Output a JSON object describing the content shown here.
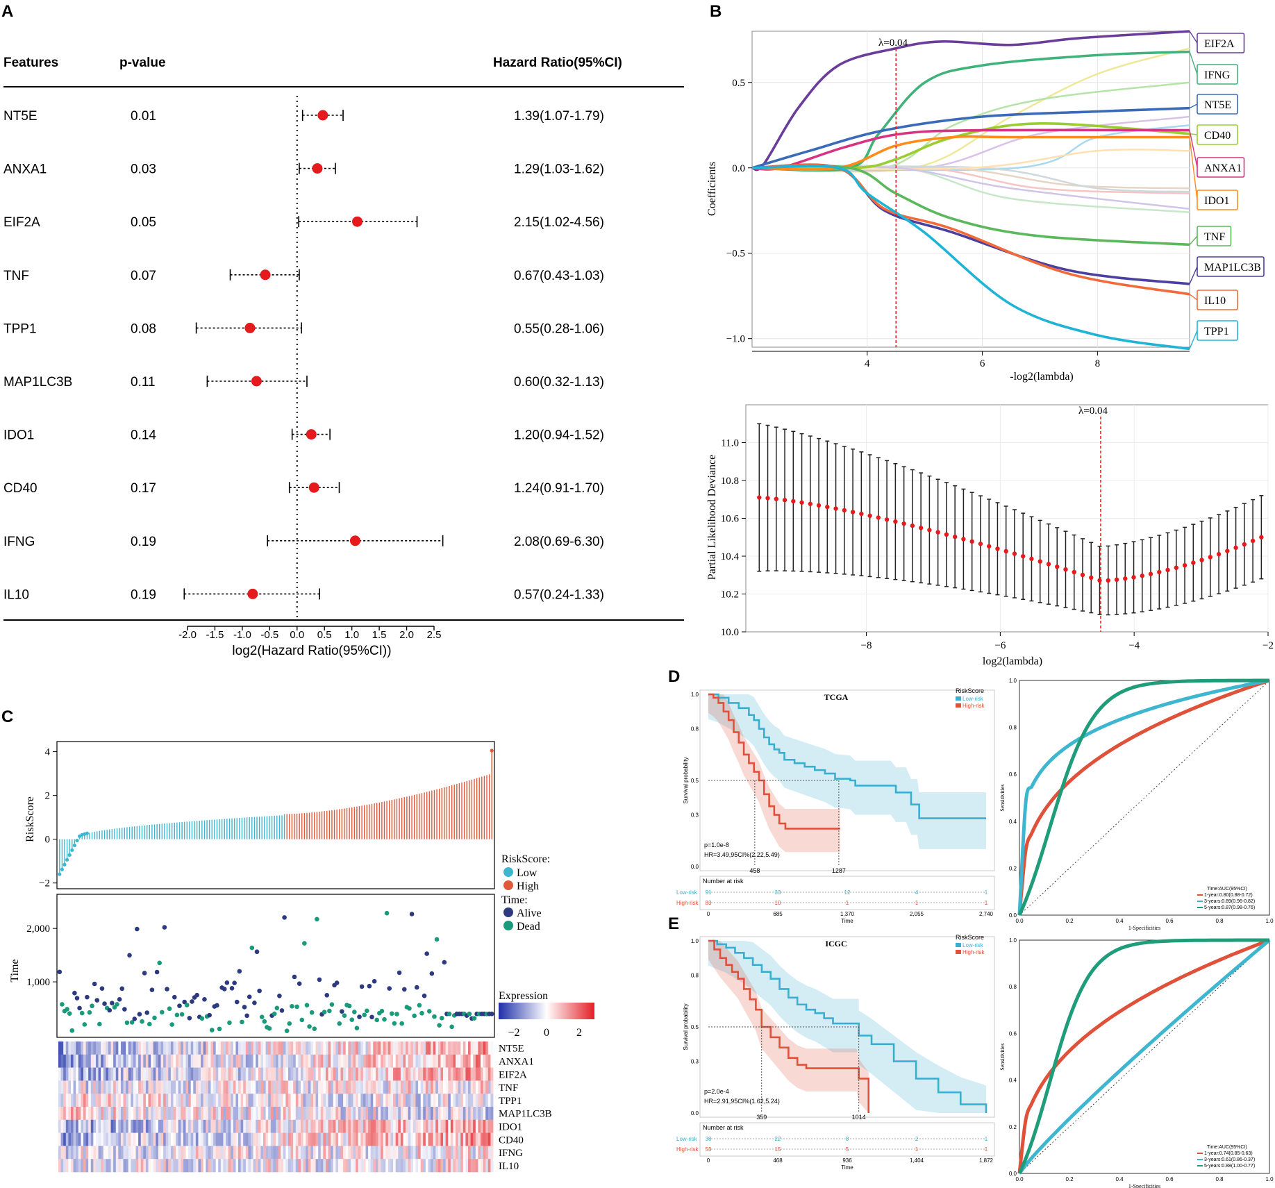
{
  "panel_letters": {
    "a": "A",
    "b": "B",
    "c": "C",
    "d": "D",
    "e": "E"
  },
  "colors": {
    "red": "#e41a1c",
    "low": "#3fb6cf",
    "high": "#e05a3a",
    "alive": "#2d3a80",
    "dead": "#199b7b",
    "km_low": "#3aaed0",
    "km_high": "#e0513a"
  },
  "chart_data": [
    {
      "id": "forest",
      "type": "forest",
      "headers": {
        "features": "Features",
        "pvalue": "p-value",
        "hr": "Hazard Ratio(95%CI)"
      },
      "xlabel": "log2(Hazard Ratio(95%CI))",
      "xlim": [
        -2.0,
        2.5
      ],
      "ticks": [
        "-2.0",
        "-1.5",
        "-1.0",
        "-0.5",
        "0.0",
        "0.5",
        "1.0",
        "1.5",
        "2.0",
        "2.5"
      ],
      "rows": [
        {
          "feature": "NT5E",
          "p": "0.01",
          "hr_text": "1.39(1.07-1.79)",
          "est": 0.47,
          "lo": 0.1,
          "hi": 0.84
        },
        {
          "feature": "ANXA1",
          "p": "0.03",
          "hr_text": "1.29(1.03-1.62)",
          "est": 0.37,
          "lo": 0.04,
          "hi": 0.7
        },
        {
          "feature": "EIF2A",
          "p": "0.05",
          "hr_text": "2.15(1.02-4.56)",
          "est": 1.1,
          "lo": 0.03,
          "hi": 2.19
        },
        {
          "feature": "TNF",
          "p": "0.07",
          "hr_text": "0.67(0.43-1.03)",
          "est": -0.58,
          "lo": -1.22,
          "hi": 0.04
        },
        {
          "feature": "TPP1",
          "p": "0.08",
          "hr_text": "0.55(0.28-1.06)",
          "est": -0.86,
          "lo": -1.84,
          "hi": 0.08
        },
        {
          "feature": "MAP1LC3B",
          "p": "0.11",
          "hr_text": "0.60(0.32-1.13)",
          "est": -0.74,
          "lo": -1.64,
          "hi": 0.18
        },
        {
          "feature": "IDO1",
          "p": "0.14",
          "hr_text": "1.20(0.94-1.52)",
          "est": 0.26,
          "lo": -0.09,
          "hi": 0.6
        },
        {
          "feature": "CD40",
          "p": "0.17",
          "hr_text": "1.24(0.91-1.70)",
          "est": 0.31,
          "lo": -0.14,
          "hi": 0.77
        },
        {
          "feature": "IFNG",
          "p": "0.19",
          "hr_text": "2.08(0.69-6.30)",
          "est": 1.06,
          "lo": -0.54,
          "hi": 2.66
        },
        {
          "feature": "IL10",
          "p": "0.19",
          "hr_text": "0.57(0.24-1.33)",
          "est": -0.81,
          "lo": -2.06,
          "hi": 0.41
        }
      ]
    },
    {
      "id": "lasso_coef",
      "type": "line",
      "xlabel": "-log2(lambda)",
      "ylabel": "Coefficients",
      "xlim": [
        2.0,
        9.6
      ],
      "ylim": [
        -1.05,
        0.8
      ],
      "xticks": [
        "4",
        "6",
        "8"
      ],
      "yticks": [
        "0.5",
        "0.0",
        "−0.5",
        "−1.0"
      ],
      "lambda_label": "λ=0.04",
      "lambda_x": 4.5,
      "series": [
        {
          "name": "EIF2A",
          "color": "#6a3d9a",
          "pts": [
            [
              2.0,
              0
            ],
            [
              2.2,
              0.02
            ],
            [
              2.8,
              0.35
            ],
            [
              3.5,
              0.6
            ],
            [
              4.5,
              0.7
            ],
            [
              5.3,
              0.74
            ],
            [
              6.5,
              0.72
            ],
            [
              7.7,
              0.76
            ],
            [
              9.6,
              0.8
            ]
          ]
        },
        {
          "name": "IFNG",
          "color": "#41b37a",
          "pts": [
            [
              3.7,
              0
            ],
            [
              4.2,
              0.2
            ],
            [
              5.0,
              0.5
            ],
            [
              6.0,
              0.6
            ],
            [
              8.0,
              0.66
            ],
            [
              9.6,
              0.68
            ]
          ]
        },
        {
          "name": "NT5E",
          "color": "#3a6ab8",
          "pts": [
            [
              2.0,
              0
            ],
            [
              3.0,
              0.1
            ],
            [
              4.3,
              0.22
            ],
            [
              6.0,
              0.3
            ],
            [
              8.0,
              0.33
            ],
            [
              9.6,
              0.35
            ]
          ]
        },
        {
          "name": "CD40",
          "color": "#9acd32",
          "pts": [
            [
              3.8,
              0
            ],
            [
              4.5,
              0.05
            ],
            [
              5.5,
              0.18
            ],
            [
              7.0,
              0.26
            ],
            [
              9.6,
              0.2
            ]
          ]
        },
        {
          "name": "ANXA1",
          "color": "#d63384",
          "pts": [
            [
              2.5,
              0
            ],
            [
              3.6,
              0.12
            ],
            [
              4.6,
              0.2
            ],
            [
              6.0,
              0.22
            ],
            [
              9.6,
              0.22
            ]
          ]
        },
        {
          "name": "IDO1",
          "color": "#ff8c1a",
          "pts": [
            [
              3.5,
              0
            ],
            [
              4.5,
              0.13
            ],
            [
              5.5,
              0.18
            ],
            [
              6.5,
              0.18
            ],
            [
              9.6,
              0.18
            ]
          ]
        },
        {
          "name": "TNF",
          "color": "#5cb85c",
          "pts": [
            [
              3.7,
              0
            ],
            [
              4.5,
              -0.15
            ],
            [
              5.5,
              -0.3
            ],
            [
              7.0,
              -0.4
            ],
            [
              9.6,
              -0.45
            ]
          ]
        },
        {
          "name": "MAP1LC3B",
          "color": "#4b3fa0",
          "pts": [
            [
              3.5,
              0
            ],
            [
              4.3,
              -0.25
            ],
            [
              5.5,
              -0.38
            ],
            [
              7.5,
              -0.6
            ],
            [
              9.6,
              -0.68
            ]
          ]
        },
        {
          "name": "IL10",
          "color": "#f06a3a",
          "pts": [
            [
              3.5,
              0
            ],
            [
              4.3,
              -0.24
            ],
            [
              5.5,
              -0.36
            ],
            [
              7.5,
              -0.62
            ],
            [
              9.6,
              -0.74
            ]
          ]
        },
        {
          "name": "TPP1",
          "color": "#1fb3d6",
          "pts": [
            [
              3.5,
              0
            ],
            [
              4.0,
              -0.15
            ],
            [
              5.0,
              -0.38
            ],
            [
              6.5,
              -0.8
            ],
            [
              8.0,
              -0.98
            ],
            [
              9.6,
              -1.06
            ]
          ]
        }
      ],
      "faint_series": [
        {
          "color": "#efe89a",
          "pts": [
            [
              4.8,
              0
            ],
            [
              6.5,
              0.3
            ],
            [
              8.0,
              0.55
            ],
            [
              9.6,
              0.7
            ]
          ]
        },
        {
          "color": "#b6e3a8",
          "pts": [
            [
              4.3,
              0
            ],
            [
              5.5,
              0.25
            ],
            [
              7.0,
              0.4
            ],
            [
              9.6,
              0.5
            ]
          ]
        },
        {
          "color": "#d9c2e8",
          "pts": [
            [
              5.0,
              0
            ],
            [
              7.0,
              0.2
            ],
            [
              9.6,
              0.3
            ]
          ]
        },
        {
          "color": "#a9d9ef",
          "pts": [
            [
              6.6,
              0
            ],
            [
              8.0,
              0.18
            ],
            [
              9.6,
              0.25
            ]
          ]
        },
        {
          "color": "#f7c4c4",
          "pts": [
            [
              5.0,
              0
            ],
            [
              7.0,
              -0.12
            ],
            [
              9.6,
              -0.15
            ]
          ]
        },
        {
          "color": "#c8e6c9",
          "pts": [
            [
              4.6,
              0
            ],
            [
              6.5,
              -0.18
            ],
            [
              9.6,
              -0.26
            ]
          ]
        },
        {
          "color": "#e6d5c3",
          "pts": [
            [
              5.4,
              0
            ],
            [
              7.5,
              -0.1
            ],
            [
              9.6,
              -0.12
            ]
          ]
        },
        {
          "color": "#cfd8dc",
          "pts": [
            [
              6.0,
              0
            ],
            [
              8.0,
              -0.12
            ],
            [
              9.6,
              -0.14
            ]
          ]
        },
        {
          "color": "#ffe0b2",
          "pts": [
            [
              5.8,
              0
            ],
            [
              8.0,
              0.1
            ],
            [
              9.6,
              0.1
            ]
          ]
        },
        {
          "color": "#d1c4e9",
          "pts": [
            [
              4.5,
              0
            ],
            [
              6.5,
              -0.12
            ],
            [
              9.6,
              -0.24
            ]
          ]
        }
      ]
    },
    {
      "id": "lasso_cv",
      "type": "errorbar",
      "xlabel": "log2(lambda)",
      "ylabel": "Partial Likelihood Deviance",
      "xlim": [
        -9.8,
        -2.0
      ],
      "ylim": [
        10.0,
        11.2
      ],
      "xticks": [
        "−8",
        "−6",
        "−4",
        "−2"
      ],
      "yticks": [
        "11.0",
        "10.8",
        "10.6",
        "10.4",
        "10.2",
        "10.0"
      ],
      "lambda_label": "λ=0.04",
      "lambda_x": -4.5,
      "n_points": 60,
      "x_start": -9.6,
      "x_end": -2.1,
      "min_x": -4.5,
      "min_y": 10.27,
      "start_y": 10.71,
      "end_y": 10.5,
      "err_start": 0.39,
      "err_min": 0.18,
      "err_end": 0.22
    },
    {
      "id": "risk",
      "type": "risk_plot",
      "risk_ylabel": "RiskScore",
      "risk_yticks": [
        "4",
        "2",
        "0",
        "−2"
      ],
      "time_ylabel": "Time",
      "time_yticks": [
        "2,000",
        "1,000"
      ],
      "legend_risk_title": "RiskScore:",
      "legend_low": "Low",
      "legend_high": "High",
      "legend_time_title": "Time:",
      "legend_alive": "Alive",
      "legend_dead": "Dead",
      "expr_title": "Expression",
      "expr_ticks": [
        "−2",
        "0",
        "2"
      ],
      "genes": [
        "NT5E",
        "ANXA1",
        "EIF2A",
        "TNF",
        "TPP1",
        "MAP1LC3B",
        "IDO1",
        "CD40",
        "IFNG",
        "IL10"
      ],
      "n_samples": 174,
      "n_low": 91
    },
    {
      "id": "km_tcga",
      "type": "km",
      "title": "TCGA",
      "legend_title": "RiskScore",
      "legend_low": "Low-risk",
      "legend_high": "High-risk",
      "ylabel": "Survival probability",
      "xlabel": "Time",
      "yticks": [
        "1.0",
        "0.8",
        "0.5",
        "0.3",
        "0.0"
      ],
      "xticks": [
        "0",
        "685",
        "1,370",
        "2,055",
        "2,740"
      ],
      "pvalue": "p=1.0e-8",
      "hr": "HR=3.49,95CI%(2.22,5.49)",
      "median_low": "1287",
      "median_high": "458",
      "risk_title": "Number at risk",
      "risk_low_label": "Low-risk",
      "risk_high_label": "High-risk",
      "risk_low": [
        "91",
        "33",
        "12",
        "4",
        "1"
      ],
      "risk_high": [
        "83",
        "10",
        "1",
        "1",
        "1"
      ],
      "xmax": 2740,
      "low_steps": [
        [
          0,
          1.0
        ],
        [
          100,
          0.98
        ],
        [
          200,
          0.95
        ],
        [
          300,
          0.92
        ],
        [
          400,
          0.88
        ],
        [
          450,
          0.85
        ],
        [
          500,
          0.8
        ],
        [
          550,
          0.75
        ],
        [
          600,
          0.71
        ],
        [
          650,
          0.68
        ],
        [
          700,
          0.66
        ],
        [
          750,
          0.62
        ],
        [
          850,
          0.6
        ],
        [
          950,
          0.58
        ],
        [
          1050,
          0.56
        ],
        [
          1150,
          0.54
        ],
        [
          1250,
          0.51
        ],
        [
          1400,
          0.5
        ],
        [
          1450,
          0.47
        ],
        [
          1800,
          0.47
        ],
        [
          1850,
          0.43
        ],
        [
          1950,
          0.43
        ],
        [
          2000,
          0.36
        ],
        [
          2060,
          0.36
        ],
        [
          2080,
          0.28
        ],
        [
          2740,
          0.28
        ]
      ],
      "high_steps": [
        [
          0,
          1.0
        ],
        [
          50,
          0.98
        ],
        [
          100,
          0.95
        ],
        [
          150,
          0.9
        ],
        [
          200,
          0.85
        ],
        [
          250,
          0.78
        ],
        [
          300,
          0.72
        ],
        [
          350,
          0.65
        ],
        [
          400,
          0.6
        ],
        [
          450,
          0.55
        ],
        [
          500,
          0.5
        ],
        [
          550,
          0.42
        ],
        [
          600,
          0.35
        ],
        [
          650,
          0.3
        ],
        [
          700,
          0.25
        ],
        [
          760,
          0.22
        ],
        [
          1300,
          0.22
        ]
      ]
    },
    {
      "id": "roc_tcga",
      "type": "roc",
      "xlabel": "1-Specificities",
      "ylabel": "Sensitivities",
      "ticks": [
        "0.0",
        "0.2",
        "0.4",
        "0.6",
        "0.8",
        "1.0"
      ],
      "legend_title": "Time:AUC(95%CI)",
      "legend": [
        "1-year:0.80(0.88-0.72)",
        "3-years:0.89(0.96-0.82)",
        "5-years:0.87(0.98-0.76)"
      ],
      "curves": [
        {
          "color": "#e0513a",
          "k": 0.35
        },
        {
          "color": "#3fb6cf",
          "k": 0.2
        },
        {
          "color": "#1f9c7a",
          "k": 0.5,
          "sig": true
        }
      ]
    },
    {
      "id": "km_icgc",
      "type": "km",
      "title": "ICGC",
      "legend_title": "RiskScore",
      "legend_low": "Low-risk",
      "legend_high": "High-risk",
      "ylabel": "Survival probability",
      "xlabel": "Time",
      "yticks": [
        "1.0",
        "0.8",
        "0.5",
        "0.3",
        "0.0"
      ],
      "xticks": [
        "0",
        "468",
        "936",
        "1,404",
        "1,872"
      ],
      "pvalue": "p=2.0e-4",
      "hr": "HR=2.91,95CI%(1.62,5.24)",
      "median_low": "1014",
      "median_high": "359",
      "risk_title": "Number at risk",
      "risk_low_label": "Low-risk",
      "risk_high_label": "High-risk",
      "risk_low": [
        "38",
        "22",
        "8",
        "2",
        "1"
      ],
      "risk_high": [
        "53",
        "15",
        "5",
        "1",
        "1"
      ],
      "xmax": 1872,
      "low_steps": [
        [
          0,
          1.0
        ],
        [
          60,
          0.98
        ],
        [
          120,
          0.96
        ],
        [
          180,
          0.93
        ],
        [
          240,
          0.9
        ],
        [
          300,
          0.86
        ],
        [
          360,
          0.82
        ],
        [
          420,
          0.78
        ],
        [
          480,
          0.72
        ],
        [
          540,
          0.67
        ],
        [
          600,
          0.63
        ],
        [
          660,
          0.6
        ],
        [
          720,
          0.58
        ],
        [
          780,
          0.55
        ],
        [
          840,
          0.52
        ],
        [
          1014,
          0.52
        ],
        [
          1014,
          0.45
        ],
        [
          1100,
          0.4
        ],
        [
          1250,
          0.3
        ],
        [
          1400,
          0.2
        ],
        [
          1550,
          0.12
        ],
        [
          1700,
          0.05
        ],
        [
          1872,
          0.0
        ]
      ],
      "high_steps": [
        [
          0,
          1.0
        ],
        [
          40,
          0.95
        ],
        [
          80,
          0.9
        ],
        [
          120,
          0.86
        ],
        [
          160,
          0.82
        ],
        [
          200,
          0.78
        ],
        [
          240,
          0.72
        ],
        [
          280,
          0.66
        ],
        [
          320,
          0.6
        ],
        [
          359,
          0.5
        ],
        [
          420,
          0.44
        ],
        [
          480,
          0.38
        ],
        [
          540,
          0.32
        ],
        [
          600,
          0.28
        ],
        [
          660,
          0.26
        ],
        [
          1000,
          0.26
        ],
        [
          1014,
          0.2
        ],
        [
          1080,
          0.12
        ],
        [
          1080,
          0.0
        ]
      ]
    },
    {
      "id": "roc_icgc",
      "type": "roc",
      "xlabel": "1-Specificities",
      "ylabel": "Sensitivities",
      "ticks": [
        "0.0",
        "0.2",
        "0.4",
        "0.6",
        "0.8",
        "1.0"
      ],
      "legend_title": "Time:AUC(95%CI)",
      "legend": [
        "1-year:0.74(0.85-0.63)",
        "3-years:0.61(0.86-0.37)",
        "5-years:0.88(1.00-0.77)"
      ],
      "curves": [
        {
          "color": "#e0513a",
          "k": 0.4
        },
        {
          "color": "#3fb6cf",
          "k": 0.9
        },
        {
          "color": "#1f9c7a",
          "k": 0.45,
          "sig": true
        }
      ]
    }
  ]
}
